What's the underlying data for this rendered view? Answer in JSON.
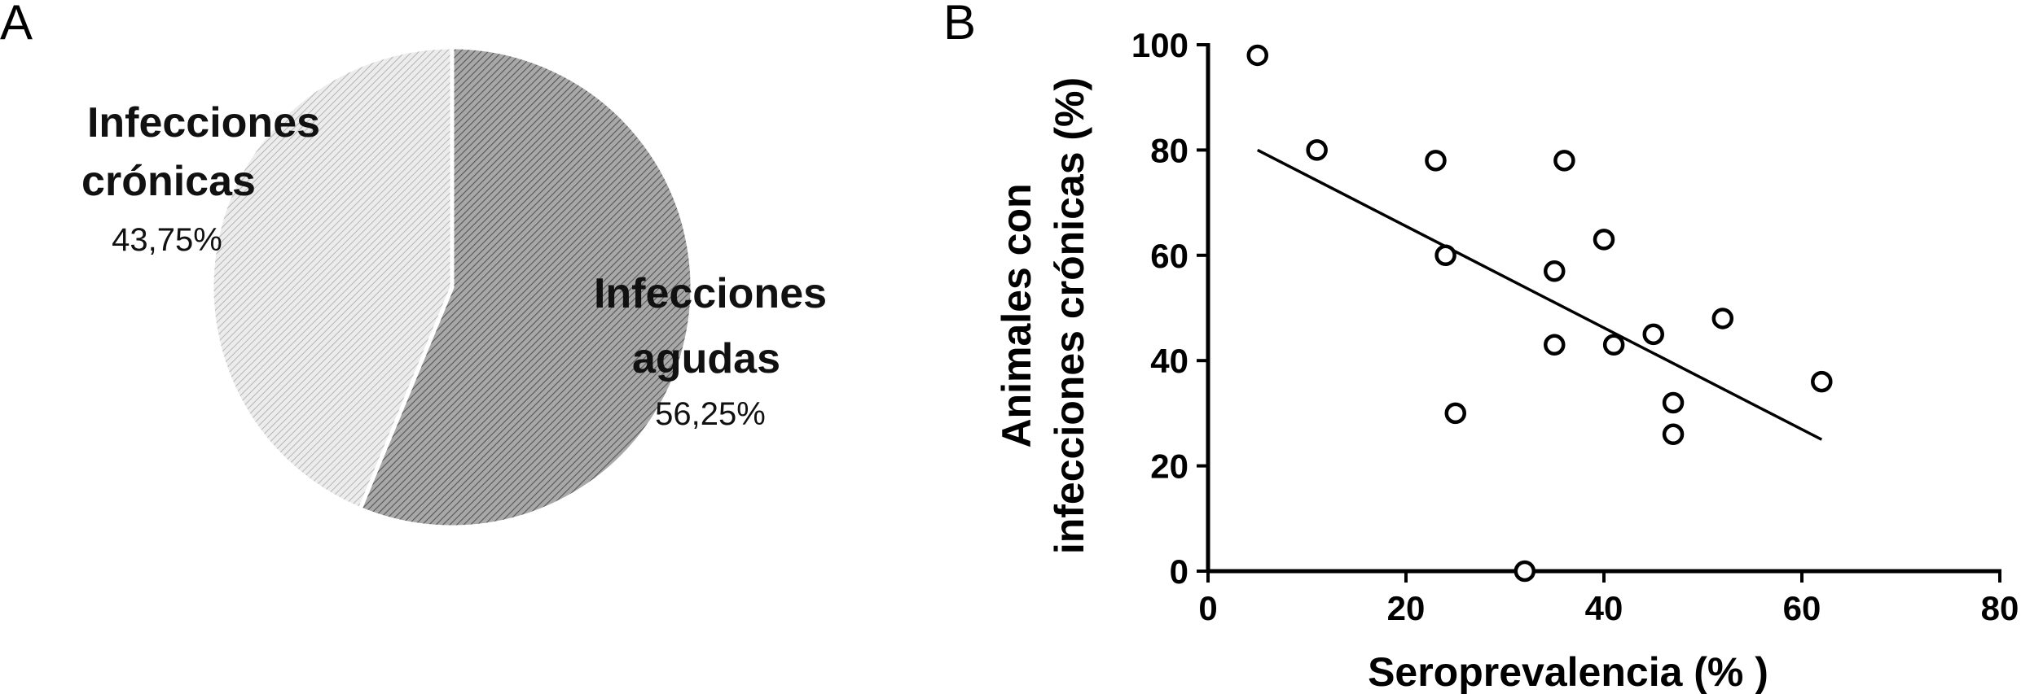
{
  "panel_labels": {
    "a": "A",
    "b": "B"
  },
  "chart_data": [
    {
      "type": "pie",
      "slices": [
        {
          "label_lines": [
            "Infecciones",
            "agudas"
          ],
          "value": 56.25,
          "pct_label": "56,25%",
          "color": "#8c8c8c"
        },
        {
          "label_lines": [
            "Infecciones",
            "crónicas"
          ],
          "value": 43.75,
          "pct_label": "43,75%",
          "color": "#d4d4d4"
        }
      ]
    },
    {
      "type": "scatter",
      "xlabel": "Seroprevalencia (% )",
      "ylabel_lines": [
        "Animales con",
        "infecciones crónicas (%)"
      ],
      "xlim": [
        0,
        80
      ],
      "ylim": [
        0,
        100
      ],
      "xticks": [
        0,
        20,
        40,
        60,
        80
      ],
      "yticks": [
        0,
        20,
        40,
        60,
        80,
        100
      ],
      "grid": false,
      "points": [
        {
          "x": 5,
          "y": 98
        },
        {
          "x": 11,
          "y": 80
        },
        {
          "x": 23,
          "y": 78
        },
        {
          "x": 24,
          "y": 60
        },
        {
          "x": 25,
          "y": 30
        },
        {
          "x": 32,
          "y": 0
        },
        {
          "x": 35,
          "y": 57
        },
        {
          "x": 35,
          "y": 43
        },
        {
          "x": 36,
          "y": 78
        },
        {
          "x": 40,
          "y": 63
        },
        {
          "x": 41,
          "y": 43
        },
        {
          "x": 45,
          "y": 45
        },
        {
          "x": 47,
          "y": 32
        },
        {
          "x": 47,
          "y": 26
        },
        {
          "x": 52,
          "y": 48
        },
        {
          "x": 62,
          "y": 36
        }
      ],
      "regression_line": {
        "x": [
          5,
          62
        ],
        "y": [
          80,
          25
        ]
      }
    }
  ]
}
